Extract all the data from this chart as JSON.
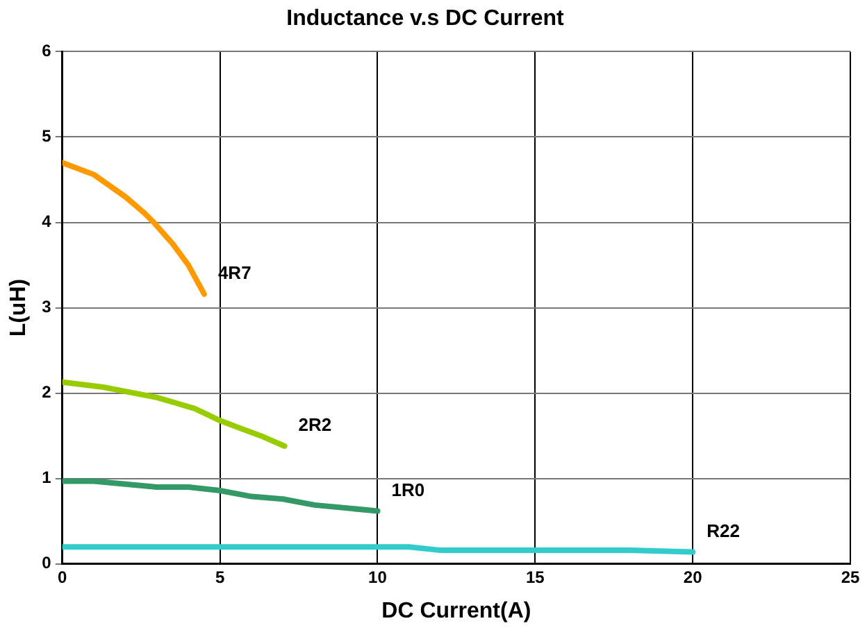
{
  "chart_data": {
    "type": "line",
    "title": "Inductance v.s DC Current",
    "xlabel": "DC Current(A)",
    "ylabel": "L(uH)",
    "xlim": [
      0,
      25
    ],
    "xticks": [
      0,
      5,
      10,
      15,
      20,
      25
    ],
    "ylim": [
      0,
      6
    ],
    "yticks": [
      0,
      1,
      2,
      3,
      4,
      5,
      6
    ],
    "grid": true,
    "legend": false,
    "marker": "none",
    "line_style": "solid",
    "series": [
      {
        "name": "4R7",
        "color": "#ff9900",
        "x": [
          0,
          1,
          2,
          2.6,
          2.9,
          3.5,
          4,
          4.5
        ],
        "values": [
          4.7,
          4.56,
          4.3,
          4.11,
          4.0,
          3.75,
          3.5,
          3.16
        ]
      },
      {
        "name": "2R2",
        "color": "#99cc00",
        "x": [
          0,
          1.3,
          3,
          4.2,
          5,
          5.5,
          6.3,
          7.05
        ],
        "values": [
          2.13,
          2.07,
          1.95,
          1.82,
          1.68,
          1.61,
          1.5,
          1.38
        ]
      },
      {
        "name": "1R0",
        "color": "#339966",
        "x": [
          0,
          1,
          3,
          4,
          5,
          6,
          7,
          8,
          10
        ],
        "values": [
          0.97,
          0.97,
          0.9,
          0.9,
          0.86,
          0.79,
          0.76,
          0.69,
          0.62
        ]
      },
      {
        "name": "R22",
        "color": "#33cccc",
        "x": [
          0,
          11,
          12,
          18,
          20
        ],
        "values": [
          0.2,
          0.2,
          0.16,
          0.16,
          0.14
        ]
      }
    ]
  }
}
